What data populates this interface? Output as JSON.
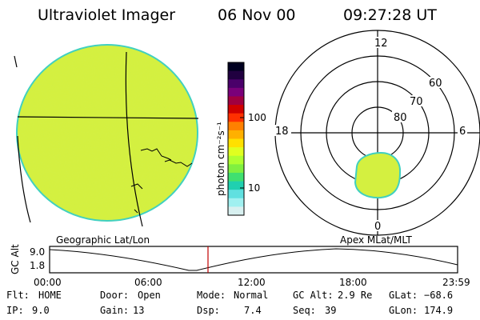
{
  "header": {
    "title": "Ultraviolet Imager",
    "date": "06 Nov 00",
    "time": "09:27:28 UT"
  },
  "colorbar": {
    "unit_label": "photon cm⁻²s⁻¹",
    "tick_100": "100",
    "tick_10": "10",
    "colors": [
      "#000020",
      "#200040",
      "#4a006a",
      "#7a007a",
      "#a00040",
      "#d00000",
      "#ff3000",
      "#ff8000",
      "#ffb000",
      "#ffe000",
      "#e0ff20",
      "#b0ff30",
      "#80f040",
      "#40e070",
      "#20d0b0",
      "#60e0e0",
      "#a0f0f0",
      "#d8f0f0"
    ]
  },
  "polar": {
    "mlt_12": "12",
    "mlt_18": "18",
    "mlt_6": "6",
    "mlt_0": "0",
    "lat_60": "60",
    "lat_70": "70",
    "lat_80": "80"
  },
  "panel_labels": {
    "left": "Geographic Lat/Lon",
    "right": "Apex MLat/MLT"
  },
  "orbit": {
    "ylabel": "GC Alt",
    "ytick_top": "9.0",
    "ytick_bottom": "1.8",
    "xticks": [
      "00:00",
      "06:00",
      "12:00",
      "18:00",
      "23:59"
    ],
    "marker_color": "#c00000"
  },
  "status": {
    "flt_label": "Flt:",
    "flt_value": "HOME",
    "ip_label": "IP:",
    "ip_value": "9.0",
    "door_label": "Door:",
    "door_value": "Open",
    "gain_label": "Gain:",
    "gain_value": "13",
    "mode_label": "Mode:",
    "mode_value": "Normal",
    "dsp_label": "Dsp:",
    "dsp_value": "7.4",
    "gcalt_label": "GC Alt:",
    "gcalt_value": "2.9 Re",
    "seq_label": "Seq:",
    "seq_value": "39",
    "glat_label": "GLat:",
    "glat_value": "−68.6",
    "glon_label": "GLon:",
    "glon_value": "174.9"
  },
  "image_color": "#d4f040",
  "image_edge_color": "#40d0c0"
}
